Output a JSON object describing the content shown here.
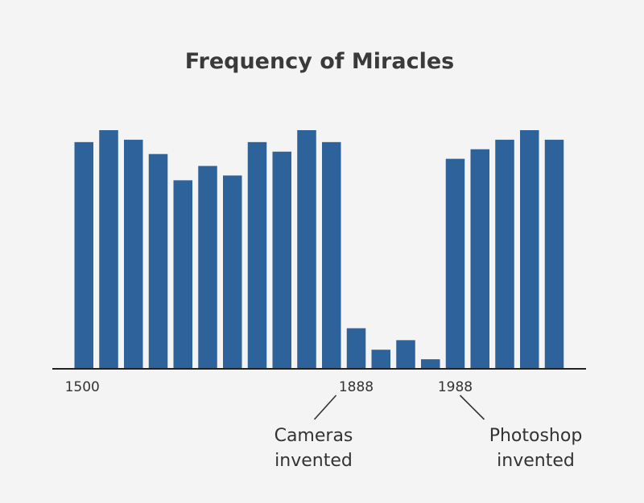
{
  "chart_data": {
    "type": "bar",
    "title": "Frequency of Miracles",
    "xlabel": "",
    "ylabel": "",
    "ylim": [
      0,
      100
    ],
    "grid": false,
    "color": "#2e629a",
    "values": [
      95,
      100,
      96,
      90,
      79,
      85,
      81,
      95,
      91,
      100,
      95,
      17,
      8,
      12,
      4,
      88,
      92,
      96,
      100,
      96
    ],
    "x_tick_labels": [
      {
        "label": "1500",
        "bar_index": 0
      },
      {
        "label": "1888",
        "bar_index": 11
      },
      {
        "label": "1988",
        "bar_index": 15
      }
    ],
    "annotations": [
      {
        "lines": [
          "Cameras",
          "invented"
        ],
        "bar_index": 11
      },
      {
        "lines": [
          "Photoshop",
          "invented"
        ],
        "bar_index": 15
      }
    ]
  }
}
